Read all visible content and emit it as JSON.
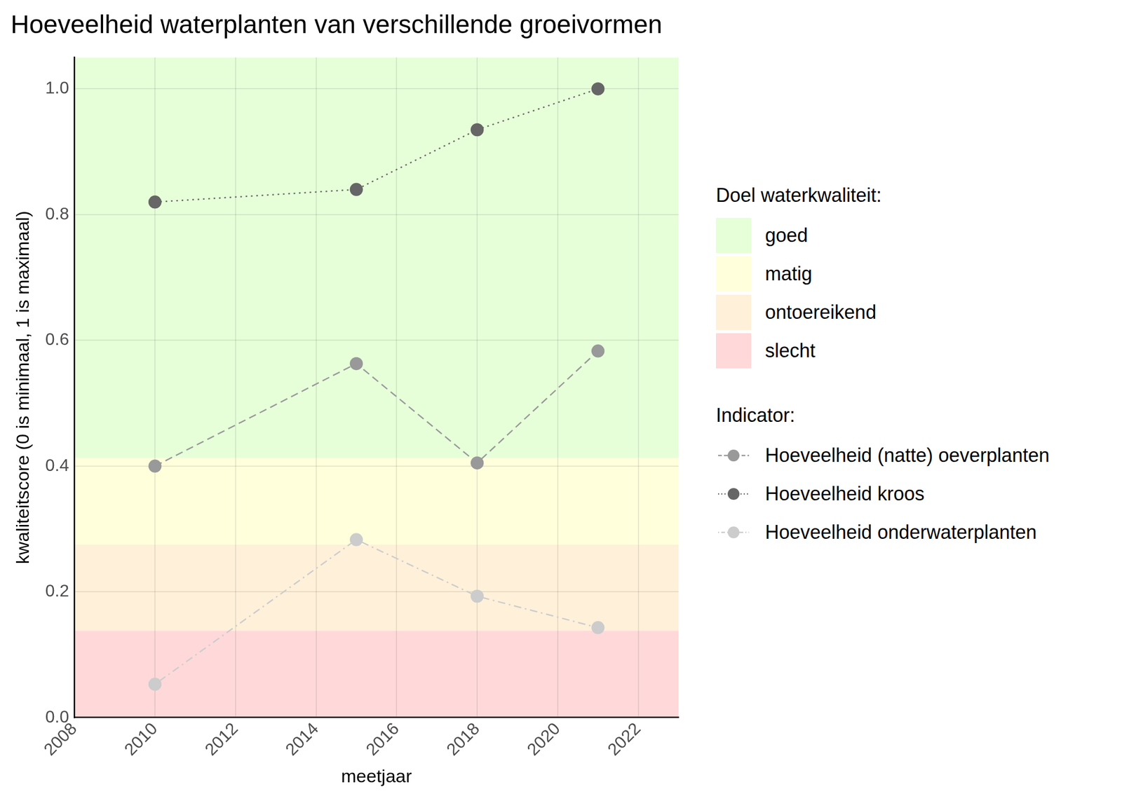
{
  "chart_data": {
    "type": "line",
    "title": "Hoeveelheid waterplanten van verschillende groeivormen",
    "x_label": "meetjaar",
    "y_label": "kwaliteitscore (0 is minimaal, 1 is maximaal)",
    "x": [
      2010,
      2015,
      2018,
      2021
    ],
    "series": [
      {
        "name": "Hoeveelheid (natte) oeverplanten",
        "color": "#999999",
        "marker": "circle",
        "line_style": "dashed",
        "values": [
          0.4,
          0.563,
          0.405,
          0.583
        ]
      },
      {
        "name": "Hoeveelheid kroos",
        "color": "#666666",
        "marker": "circle",
        "line_style": "dotted",
        "values": [
          0.82,
          0.84,
          0.935,
          1.0
        ]
      },
      {
        "name": "Hoeveelheid onderwaterplanten",
        "color": "#cccccc",
        "marker": "circle",
        "line_style": "dashdot",
        "values": [
          0.053,
          0.283,
          0.193,
          0.143
        ]
      }
    ],
    "bands_title": "Doel waterkwaliteit:",
    "bands": [
      {
        "name": "goed",
        "color": "#e6ffd9",
        "from": 0.413,
        "to": 1.05
      },
      {
        "name": "matig",
        "color": "#ffffdc",
        "from": 0.275,
        "to": 0.413
      },
      {
        "name": "ontoereikend",
        "color": "#fff0d9",
        "from": 0.138,
        "to": 0.275
      },
      {
        "name": "slecht",
        "color": "#ffd9d9",
        "from": 0,
        "to": 0.138
      }
    ],
    "legend_title": "Indicator:",
    "legend": "right",
    "xlim": [
      2008,
      2023
    ],
    "xticks": [
      2008,
      2010,
      2012,
      2014,
      2016,
      2018,
      2020,
      2022
    ],
    "ylim": [
      0,
      1.05
    ],
    "yticks": [
      {
        "value": 0,
        "label": "0.0"
      },
      {
        "value": 0.2,
        "label": "0.2"
      },
      {
        "value": 0.4,
        "label": "0.4"
      },
      {
        "value": 0.6,
        "label": "0.6"
      },
      {
        "value": 0.8,
        "label": "0.8"
      },
      {
        "value": 1.0,
        "label": "1.0"
      }
    ],
    "grid": true
  }
}
